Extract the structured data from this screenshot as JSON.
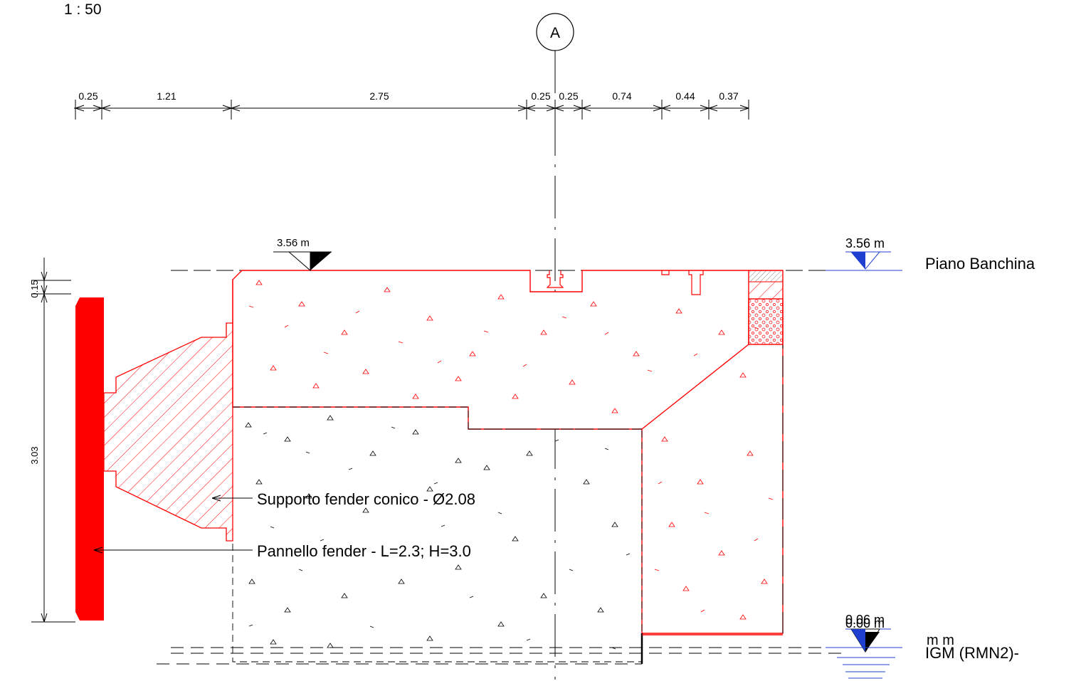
{
  "scale_label": "1 : 50",
  "grid_axis": {
    "label": "A"
  },
  "dimensions_top": [
    "0.25",
    "1.21",
    "2.75",
    "0.25",
    "0.25",
    "0.74",
    "0.44",
    "0.37"
  ],
  "dimensions_left": [
    "0.15",
    "3.03"
  ],
  "levels": {
    "top_left": "3.56 m",
    "top_right": "3.56 m",
    "top_right_caption": "Piano Banchina",
    "bottom_right_a": "0.06 m",
    "bottom_right_b": "0.00 m",
    "bottom_right_caption": "IGM (RMN2)-",
    "bottom_right_overlap": "m m"
  },
  "annotations": {
    "fender_support": "Supporto fender conico - Ø2.08",
    "fender_panel": "Pannello fender - L=2.3; H=3.0"
  },
  "colors": {
    "section_red": "#ff0000",
    "level_blue": "#1f3fd0",
    "line_black": "#000000"
  }
}
